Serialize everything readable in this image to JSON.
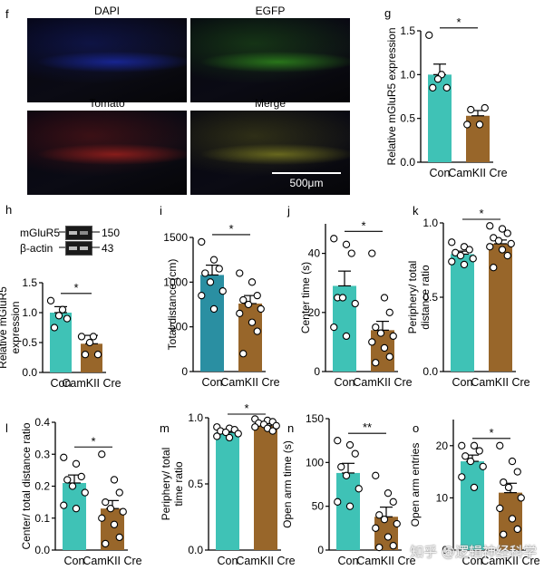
{
  "colors": {
    "con": "#3fc2b6",
    "con_dark": "#2a8fa2",
    "cre": "#98662a",
    "axis": "#000000"
  },
  "panel_f": {
    "letter": "f",
    "images": [
      {
        "name": "dapi",
        "label": "DAPI",
        "tint": "#1a2aa8"
      },
      {
        "name": "egfp",
        "label": "EGFP",
        "tint": "#2f8a1c"
      },
      {
        "name": "tomato",
        "label": "Tomato",
        "tint": "#a0201c"
      },
      {
        "name": "merge",
        "label": "Merge",
        "tint": "#7a7a20"
      }
    ],
    "scale_bar": "500μm"
  },
  "panel_h_blot": {
    "letter": "h",
    "bands": [
      {
        "protein": "mGluR5",
        "kda": "150"
      },
      {
        "protein": "β-actin",
        "kda": "43"
      }
    ]
  },
  "chart_data": [
    {
      "panel": "g",
      "type": "bar",
      "ylabel": "Relative mGluR5 expression",
      "categories": [
        "Con",
        "CamKII Cre"
      ],
      "values": [
        1.0,
        0.53
      ],
      "errors": [
        0.12,
        0.06
      ],
      "ylim": [
        0,
        1.5
      ],
      "yticks": [
        "0.0",
        "0.5",
        "1.0",
        "1.5"
      ],
      "significance": "*",
      "points": [
        [
          1.45,
          1.0,
          0.85,
          0.85,
          0.95
        ],
        [
          0.43,
          0.43,
          0.62,
          0.6
        ]
      ]
    },
    {
      "panel": "h",
      "type": "bar",
      "ylabel": "Relative mGluR5 expression",
      "categories": [
        "Con",
        "CamKII Cre"
      ],
      "values": [
        1.0,
        0.48
      ],
      "errors": [
        0.1,
        0.14
      ],
      "ylim": [
        0,
        1.5
      ],
      "yticks": [
        "0.0",
        "0.5",
        "1.0",
        "1.5"
      ],
      "significance": "*",
      "points": [
        [
          1.2,
          1.05,
          0.9,
          0.75,
          0.95
        ],
        [
          0.6,
          0.6,
          0.3,
          0.3,
          0.5
        ]
      ]
    },
    {
      "panel": "i",
      "type": "bar",
      "ylabel": "Total distance (cm)",
      "categories": [
        "Con",
        "CamKII Cre"
      ],
      "values": [
        1080,
        760
      ],
      "errors": [
        110,
        90
      ],
      "ylim": [
        0,
        1500
      ],
      "yticks": [
        "0",
        "500",
        "1000",
        "1500"
      ],
      "significance": "*",
      "points": [
        [
          1450,
          1250,
          1150,
          1100,
          1000,
          900,
          850,
          700
        ],
        [
          1100,
          1000,
          850,
          800,
          750,
          700,
          650,
          550,
          450,
          200
        ]
      ]
    },
    {
      "panel": "j",
      "type": "bar",
      "ylabel": "Center time (s)",
      "categories": [
        "Con",
        "CamKII Cre"
      ],
      "values": [
        29,
        14
      ],
      "errors": [
        5,
        3
      ],
      "ylim": [
        0,
        50
      ],
      "yticks": [
        "0",
        "20",
        "40"
      ],
      "significance": "*",
      "points": [
        [
          45,
          43,
          40,
          25,
          25,
          23,
          15,
          12
        ],
        [
          40,
          25,
          20,
          15,
          13,
          12,
          10,
          8,
          5,
          3
        ]
      ]
    },
    {
      "panel": "k",
      "type": "bar",
      "ylabel": "Periphery/ total distance ratio",
      "categories": [
        "Con",
        "CamKII Cre"
      ],
      "values": [
        0.79,
        0.86
      ],
      "errors": [
        0.02,
        0.025
      ],
      "ylim": [
        0,
        1.0
      ],
      "yticks": [
        "0.0",
        "0.5",
        "1.0"
      ],
      "significance": "*",
      "points": [
        [
          0.87,
          0.84,
          0.82,
          0.8,
          0.78,
          0.76,
          0.74,
          0.72
        ],
        [
          0.98,
          0.96,
          0.93,
          0.9,
          0.88,
          0.86,
          0.84,
          0.82,
          0.78,
          0.7
        ]
      ]
    },
    {
      "panel": "l",
      "type": "bar",
      "ylabel": "Center/ total distance ratio",
      "categories": [
        "Con",
        "CamKII Cre"
      ],
      "values": [
        0.21,
        0.13
      ],
      "errors": [
        0.025,
        0.025
      ],
      "ylim": [
        0,
        0.4
      ],
      "yticks": [
        "0.0",
        "0.1",
        "0.2",
        "0.3",
        "0.4"
      ],
      "significance": "*",
      "points": [
        [
          0.29,
          0.27,
          0.23,
          0.22,
          0.2,
          0.18,
          0.14,
          0.13
        ],
        [
          0.3,
          0.22,
          0.18,
          0.15,
          0.13,
          0.12,
          0.1,
          0.08,
          0.04,
          0.02
        ]
      ]
    },
    {
      "panel": "m",
      "type": "bar",
      "ylabel": "Periphery/ total time ratio",
      "categories": [
        "Con",
        "CamKII Cre"
      ],
      "values": [
        0.89,
        0.94
      ],
      "errors": [
        0.015,
        0.015
      ],
      "ylim": [
        0,
        1.0
      ],
      "yticks": [
        "0.0",
        "0.5",
        "1.0"
      ],
      "significance": "*",
      "points": [
        [
          0.93,
          0.92,
          0.91,
          0.9,
          0.89,
          0.88,
          0.86,
          0.85
        ],
        [
          0.99,
          0.98,
          0.97,
          0.96,
          0.95,
          0.94,
          0.93,
          0.92,
          0.9
        ]
      ]
    },
    {
      "panel": "n",
      "type": "bar",
      "ylabel": "Open arm time (s)",
      "categories": [
        "Con",
        "CamKII Cre"
      ],
      "values": [
        88,
        38
      ],
      "errors": [
        11,
        11
      ],
      "ylim": [
        0,
        150
      ],
      "yticks": [
        "0",
        "50",
        "100",
        "150"
      ],
      "significance": "**",
      "points": [
        [
          125,
          120,
          110,
          95,
          85,
          70,
          55,
          50
        ],
        [
          85,
          65,
          55,
          40,
          35,
          30,
          25,
          15,
          5,
          3
        ]
      ]
    },
    {
      "panel": "o",
      "type": "bar",
      "ylabel": "Open arm entries",
      "categories": [
        "Con",
        "CamKII Cre"
      ],
      "values": [
        17,
        11
      ],
      "errors": [
        1.2,
        1.8
      ],
      "ylim": [
        0,
        25
      ],
      "yticks": [
        "0",
        "10",
        "20"
      ],
      "significance": "*",
      "points": [
        [
          20,
          20,
          19,
          18,
          17,
          16,
          14,
          12
        ],
        [
          20,
          17,
          15,
          13,
          12,
          10,
          8,
          6,
          4,
          3
        ]
      ]
    }
  ],
  "watermark": "知乎 @逻辑神经科学"
}
